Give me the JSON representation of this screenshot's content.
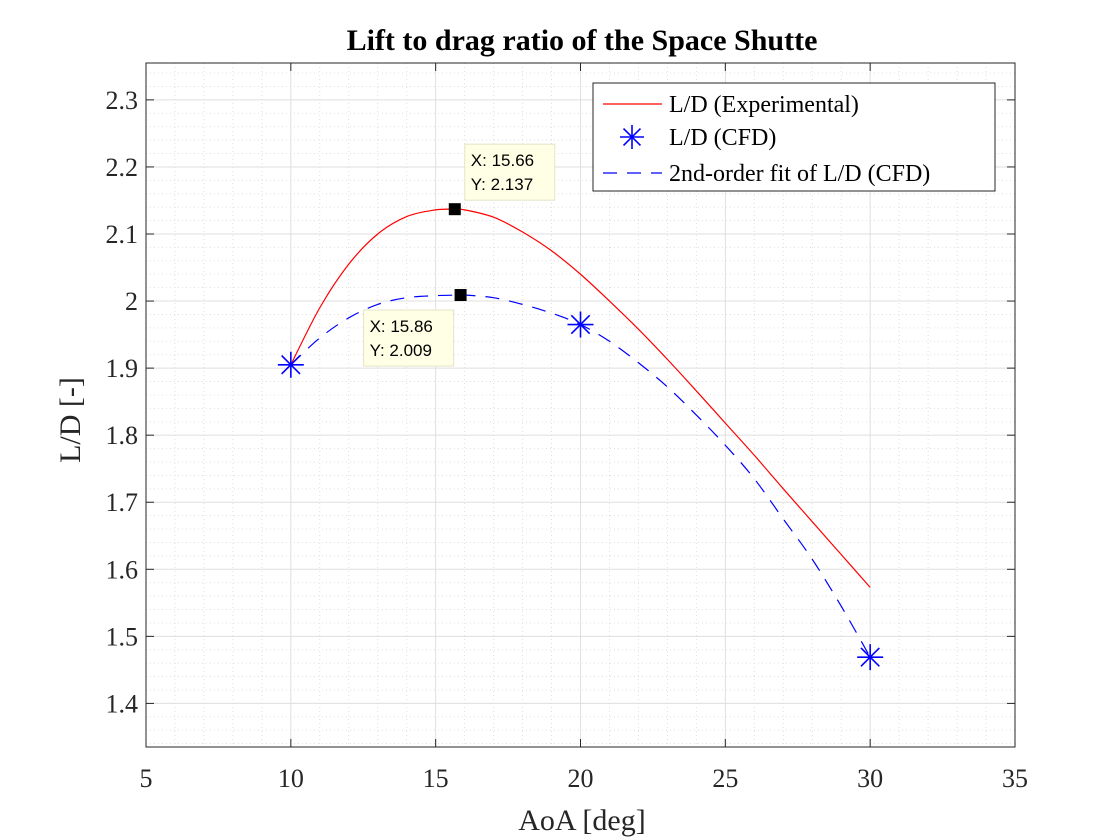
{
  "chart_data": {
    "type": "line",
    "title": "Lift to drag ratio of the Space Shutte",
    "xlabel": "AoA [deg]",
    "ylabel": "L/D [-]",
    "xlim": [
      5,
      35
    ],
    "ylim": [
      1.335,
      2.355
    ],
    "xticks": [
      "5",
      "10",
      "15",
      "20",
      "25",
      "30",
      "35"
    ],
    "yticks": [
      "1.4",
      "1.5",
      "1.6",
      "1.7",
      "1.8",
      "1.9",
      "2",
      "2.1",
      "2.2",
      "2.3"
    ],
    "grid": true,
    "minor_grid": true,
    "legend_position": "top-right",
    "series": [
      {
        "name": "L/D (Experimental)",
        "style": "solid-line",
        "color": "#ff0000",
        "x": [
          10,
          11,
          12,
          13,
          14,
          15,
          15.66,
          16,
          17,
          18,
          19,
          20,
          21,
          22,
          23,
          24,
          25,
          26,
          27,
          28,
          29,
          30
        ],
        "y": [
          1.905,
          1.99,
          2.055,
          2.1,
          2.126,
          2.136,
          2.137,
          2.136,
          2.125,
          2.103,
          2.075,
          2.04,
          2.0,
          1.958,
          1.913,
          1.866,
          1.818,
          1.77,
          1.72,
          1.671,
          1.622,
          1.573
        ]
      },
      {
        "name": "L/D (CFD)",
        "style": "markers",
        "marker": "asterisk",
        "color": "#0000ff",
        "x": [
          10,
          20,
          30
        ],
        "y": [
          1.905,
          1.965,
          1.469
        ]
      },
      {
        "name": "2nd-order fit of L/D (CFD)",
        "style": "dashed-line",
        "color": "#0000ff",
        "x": [
          10,
          11,
          12,
          13,
          14,
          15,
          15.86,
          16,
          17,
          18,
          19,
          20,
          21,
          22,
          23,
          24,
          25,
          26,
          27,
          28,
          29,
          30
        ],
        "y": [
          1.905,
          1.945,
          1.975,
          1.995,
          2.005,
          2.008,
          2.009,
          2.009,
          2.005,
          1.995,
          1.982,
          1.965,
          1.94,
          1.908,
          1.872,
          1.83,
          1.785,
          1.735,
          1.675,
          1.615,
          1.545,
          1.469
        ]
      }
    ],
    "datatips": [
      {
        "series": "L/D (Experimental)",
        "x": 15.66,
        "y": 2.137,
        "x_label": "X: 15.66",
        "y_label": "Y: 2.137",
        "placement": "above-right"
      },
      {
        "series": "2nd-order fit of L/D (CFD)",
        "x": 15.86,
        "y": 2.009,
        "x_label": "X: 15.86",
        "y_label": "Y: 2.009",
        "placement": "below-left"
      }
    ],
    "colors": {
      "axes": "#262626",
      "grid": "#dfdfdf",
      "datatip_bg": "#ffffe6"
    }
  }
}
